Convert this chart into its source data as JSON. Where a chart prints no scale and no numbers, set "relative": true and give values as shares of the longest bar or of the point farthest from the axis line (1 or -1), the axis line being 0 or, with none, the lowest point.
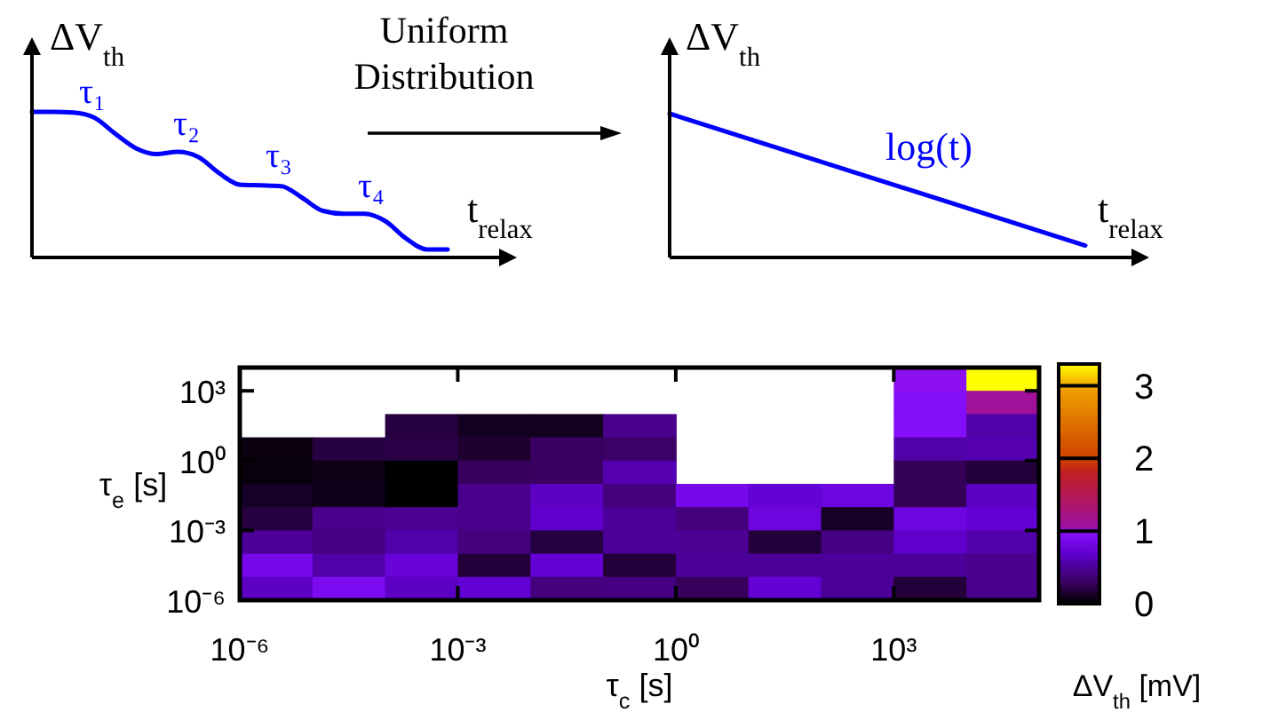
{
  "chart_data": [
    {
      "type": "line",
      "relative": true,
      "ylabel": "ΔV$_{th}$",
      "xlabel": "t$_{relax}$",
      "annotations": [
        "τ₁",
        "τ₂",
        "τ₃",
        "τ₄"
      ],
      "categories": [
        null,
        null,
        null,
        null,
        null,
        null,
        null,
        null,
        null,
        null,
        null,
        null,
        null,
        null,
        null,
        null,
        null,
        null,
        null,
        null,
        null
      ],
      "series": [
        {
          "color": "#0000ff",
          "values": [
            1,
            1,
            0.995,
            0.96,
            0.85,
            0.75,
            0.71,
            0.725,
            0.69,
            0.58,
            0.5,
            0.495,
            0.49,
            0.41,
            0.32,
            0.3,
            0.3,
            0.25,
            0.13,
            0.055,
            0.055
          ]
        }
      ]
    },
    {
      "type": "line",
      "relative": true,
      "ylabel": "ΔV$_{th}$",
      "xlabel": "t$_{relax}$",
      "annotations": [
        "log(t)",
        "Uniform Distribution"
      ],
      "categories": [
        null,
        null
      ],
      "series": [
        {
          "color": "#0000ff",
          "values": [
            1,
            0.083
          ]
        }
      ]
    },
    {
      "type": "heatmap",
      "xlabel": "τ$_{c}$ [s]",
      "ylabel": "τ$_{e}$ [s]",
      "clabel": "ΔV$_{th}$ [mV]",
      "log": "xy",
      "xlim": [
        1e-06,
        100000
      ],
      "ylim": [
        1e-06,
        10000
      ],
      "clim": [
        0,
        3.3
      ],
      "cticks": [
        0,
        1,
        2,
        3
      ],
      "xticks": [
        {
          "value": 1e-06,
          "label": "10⁻⁶"
        },
        {
          "value": 0.001,
          "label": "10⁻³"
        },
        {
          "value": 1,
          "label": "10⁰"
        },
        {
          "value": 1000,
          "label": "10³"
        }
      ],
      "yticks": [
        {
          "value": 1e-06,
          "label": "10⁻⁶"
        },
        {
          "value": 0.001,
          "label": "10⁻³"
        },
        {
          "value": 1,
          "label": "10⁰"
        },
        {
          "value": 1000,
          "label": "10³"
        }
      ],
      "cells": [
        [
          null,
          null,
          null,
          null,
          null,
          null,
          null,
          null,
          null,
          1.0,
          3.3
        ],
        [
          null,
          null,
          null,
          null,
          null,
          null,
          null,
          null,
          null,
          0.95,
          1.1
        ],
        [
          null,
          null,
          0.2,
          0.1,
          0.1,
          0.45,
          null,
          null,
          null,
          0.95,
          0.55
        ],
        [
          0.05,
          0.2,
          0.22,
          0.15,
          0.3,
          0.32,
          null,
          null,
          null,
          0.55,
          0.58
        ],
        [
          0.04,
          0.07,
          0.0,
          0.28,
          0.3,
          0.58,
          null,
          null,
          null,
          0.27,
          0.18
        ],
        [
          0.12,
          0.08,
          0.0,
          0.45,
          0.65,
          0.4,
          0.85,
          0.72,
          0.78,
          0.27,
          0.65
        ],
        [
          0.2,
          0.45,
          0.48,
          0.45,
          0.68,
          0.5,
          0.4,
          0.78,
          0.12,
          0.78,
          0.72
        ],
        [
          0.5,
          0.42,
          0.55,
          0.4,
          0.2,
          0.5,
          0.48,
          0.18,
          0.42,
          0.68,
          0.55
        ],
        [
          0.85,
          0.55,
          0.75,
          0.18,
          0.72,
          0.18,
          0.5,
          0.5,
          0.5,
          0.5,
          0.45
        ],
        [
          0.65,
          0.9,
          0.65,
          0.72,
          0.4,
          0.42,
          0.28,
          0.72,
          0.5,
          0.18,
          0.45
        ]
      ]
    }
  ]
}
